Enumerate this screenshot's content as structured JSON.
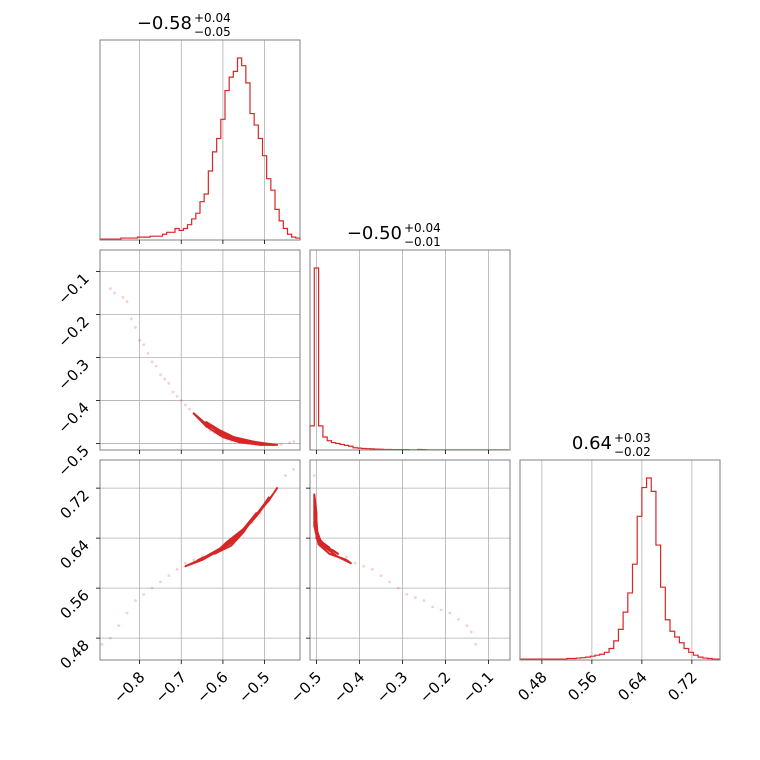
{
  "chart_data": {
    "type": "corner",
    "color": "#d62728",
    "params": [
      {
        "title_main": "−0.58",
        "title_plus": "+0.04",
        "title_minus": "−0.05",
        "range": [
          -0.895,
          -0.415
        ],
        "ticks": [
          -0.8,
          -0.7,
          -0.6,
          -0.5
        ],
        "tick_labels": [
          "−0.8",
          "−0.7",
          "−0.6",
          "−0.5"
        ]
      },
      {
        "title_main": "−0.50",
        "title_plus": "+0.04",
        "title_minus": "−0.01",
        "range": [
          -0.515,
          -0.05
        ],
        "ticks": [
          -0.5,
          -0.4,
          -0.3,
          -0.2,
          -0.1
        ],
        "tick_labels": [
          "−0.5",
          "−0.4",
          "−0.3",
          "−0.2",
          "−0.1"
        ]
      },
      {
        "title_main": "0.64",
        "title_plus": "+0.03",
        "title_minus": "−0.02",
        "range": [
          0.445,
          0.765
        ],
        "ticks": [
          0.48,
          0.56,
          0.64,
          0.72
        ],
        "tick_labels": [
          "0.48",
          "0.56",
          "0.64",
          "0.72"
        ]
      }
    ],
    "histograms": [
      {
        "param": 0,
        "edges": [
          -0.895,
          -0.885,
          -0.875,
          -0.865,
          -0.855,
          -0.845,
          -0.835,
          -0.825,
          -0.815,
          -0.805,
          -0.795,
          -0.785,
          -0.775,
          -0.765,
          -0.755,
          -0.745,
          -0.735,
          -0.725,
          -0.715,
          -0.705,
          -0.695,
          -0.685,
          -0.675,
          -0.665,
          -0.655,
          -0.645,
          -0.635,
          -0.625,
          -0.615,
          -0.605,
          -0.595,
          -0.585,
          -0.575,
          -0.565,
          -0.555,
          -0.545,
          -0.535,
          -0.525,
          -0.515,
          -0.505,
          -0.495,
          -0.485,
          -0.475,
          -0.465,
          -0.455,
          -0.445,
          -0.435,
          -0.425,
          -0.415
        ],
        "counts": [
          0.005,
          0.005,
          0.005,
          0.005,
          0.005,
          0.01,
          0.01,
          0.01,
          0.01,
          0.015,
          0.015,
          0.015,
          0.02,
          0.02,
          0.02,
          0.03,
          0.04,
          0.04,
          0.06,
          0.05,
          0.06,
          0.08,
          0.11,
          0.14,
          0.2,
          0.24,
          0.36,
          0.46,
          0.53,
          0.63,
          0.78,
          0.85,
          0.88,
          0.95,
          0.91,
          0.82,
          0.66,
          0.6,
          0.53,
          0.44,
          0.32,
          0.26,
          0.16,
          0.1,
          0.06,
          0.03,
          0.015,
          0.01
        ]
      },
      {
        "param": 1,
        "edges": [
          -0.515,
          -0.505,
          -0.495,
          -0.485,
          -0.475,
          -0.465,
          -0.455,
          -0.445,
          -0.435,
          -0.425,
          -0.415,
          -0.405,
          -0.395,
          -0.385,
          -0.375,
          -0.365,
          -0.355,
          -0.345,
          -0.335,
          -0.325,
          -0.315,
          -0.305,
          -0.295,
          -0.285,
          -0.275,
          -0.265,
          -0.255,
          -0.245,
          -0.235,
          -0.225,
          -0.215,
          -0.205,
          -0.195,
          -0.185,
          -0.175,
          -0.165,
          -0.155,
          -0.145,
          -0.135,
          -0.125,
          -0.115,
          -0.105,
          -0.095,
          -0.085,
          -0.075,
          -0.065,
          -0.055
        ],
        "counts": [
          0.13,
          0.98,
          0.13,
          0.07,
          0.05,
          0.04,
          0.035,
          0.03,
          0.025,
          0.02,
          0.012,
          0.01,
          0.008,
          0.007,
          0.006,
          0.005,
          0.004,
          0.003,
          0.003,
          0.002,
          0.002,
          0.002,
          0.002,
          0.001,
          0.001,
          0.003,
          0.002,
          0.001,
          0.001,
          0.001,
          0.001,
          0.001,
          0.001,
          0.001,
          0.001,
          0.001,
          0.001,
          0.001,
          0.001,
          0.001,
          0.001,
          0.001,
          0.001,
          0.001,
          0.001,
          0.001
        ]
      },
      {
        "param": 2,
        "edges": [
          0.445,
          0.4525,
          0.46,
          0.4675,
          0.475,
          0.4825,
          0.49,
          0.4975,
          0.505,
          0.5125,
          0.52,
          0.5275,
          0.535,
          0.5425,
          0.55,
          0.5575,
          0.565,
          0.5725,
          0.58,
          0.5875,
          0.595,
          0.6025,
          0.61,
          0.6175,
          0.625,
          0.6325,
          0.64,
          0.6475,
          0.655,
          0.6625,
          0.67,
          0.6775,
          0.685,
          0.6925,
          0.7,
          0.7075,
          0.715,
          0.7225,
          0.73,
          0.7375,
          0.745,
          0.7525,
          0.76,
          0.765
        ],
        "counts": [
          0.005,
          0.005,
          0.005,
          0.005,
          0.005,
          0.005,
          0.005,
          0.005,
          0.005,
          0.005,
          0.008,
          0.008,
          0.01,
          0.012,
          0.015,
          0.02,
          0.025,
          0.03,
          0.04,
          0.06,
          0.1,
          0.16,
          0.25,
          0.35,
          0.5,
          0.75,
          0.9,
          0.95,
          0.88,
          0.6,
          0.38,
          0.21,
          0.15,
          0.12,
          0.09,
          0.06,
          0.04,
          0.025,
          0.015,
          0.01,
          0.008,
          0.005,
          0.005
        ]
      }
    ],
    "scatter_samples": {
      "xy_10": [
        [
          -0.87,
          -0.14
        ],
        [
          -0.86,
          -0.15
        ],
        [
          -0.84,
          -0.16
        ],
        [
          -0.83,
          -0.17
        ],
        [
          -0.82,
          -0.21
        ],
        [
          -0.81,
          -0.23
        ],
        [
          -0.8,
          -0.26
        ],
        [
          -0.79,
          -0.27
        ],
        [
          -0.78,
          -0.29
        ],
        [
          -0.77,
          -0.31
        ],
        [
          -0.76,
          -0.32
        ],
        [
          -0.75,
          -0.34
        ],
        [
          -0.74,
          -0.35
        ],
        [
          -0.73,
          -0.36
        ],
        [
          -0.72,
          -0.38
        ],
        [
          -0.71,
          -0.39
        ],
        [
          -0.7,
          -0.4
        ],
        [
          -0.69,
          -0.41
        ],
        [
          -0.68,
          -0.42
        ],
        [
          -0.67,
          -0.43
        ],
        [
          -0.66,
          -0.44
        ],
        [
          -0.65,
          -0.45
        ],
        [
          -0.64,
          -0.46
        ],
        [
          -0.63,
          -0.47
        ],
        [
          -0.62,
          -0.475
        ],
        [
          -0.61,
          -0.48
        ],
        [
          -0.6,
          -0.485
        ],
        [
          -0.59,
          -0.49
        ],
        [
          -0.58,
          -0.493
        ],
        [
          -0.56,
          -0.497
        ],
        [
          -0.54,
          -0.5
        ],
        [
          -0.52,
          -0.502
        ],
        [
          -0.5,
          -0.503
        ],
        [
          -0.48,
          -0.503
        ],
        [
          -0.46,
          -0.502
        ],
        [
          -0.44,
          -0.498
        ],
        [
          -0.43,
          -0.495
        ]
      ],
      "xy_20": [
        [
          -0.89,
          0.47
        ],
        [
          -0.87,
          0.48
        ],
        [
          -0.85,
          0.5
        ],
        [
          -0.83,
          0.52
        ],
        [
          -0.81,
          0.54
        ],
        [
          -0.79,
          0.55
        ],
        [
          -0.77,
          0.56
        ],
        [
          -0.75,
          0.57
        ],
        [
          -0.73,
          0.58
        ],
        [
          -0.71,
          0.59
        ],
        [
          -0.69,
          0.6
        ],
        [
          -0.67,
          0.605
        ],
        [
          -0.65,
          0.61
        ],
        [
          -0.63,
          0.615
        ],
        [
          -0.61,
          0.62
        ],
        [
          -0.59,
          0.63
        ],
        [
          -0.57,
          0.64
        ],
        [
          -0.55,
          0.65
        ],
        [
          -0.53,
          0.665
        ],
        [
          -0.51,
          0.68
        ],
        [
          -0.49,
          0.7
        ],
        [
          -0.47,
          0.72
        ],
        [
          -0.45,
          0.74
        ],
        [
          -0.43,
          0.75
        ]
      ],
      "xy_21": [
        [
          -0.505,
          0.74
        ],
        [
          -0.505,
          0.7
        ],
        [
          -0.505,
          0.66
        ],
        [
          -0.5,
          0.64
        ],
        [
          -0.49,
          0.63
        ],
        [
          -0.47,
          0.62
        ],
        [
          -0.45,
          0.615
        ],
        [
          -0.43,
          0.61
        ],
        [
          -0.41,
          0.6
        ],
        [
          -0.39,
          0.595
        ],
        [
          -0.37,
          0.59
        ],
        [
          -0.35,
          0.58
        ],
        [
          -0.33,
          0.57
        ],
        [
          -0.31,
          0.56
        ],
        [
          -0.29,
          0.55
        ],
        [
          -0.27,
          0.545
        ],
        [
          -0.25,
          0.54
        ],
        [
          -0.23,
          0.53
        ],
        [
          -0.21,
          0.525
        ],
        [
          -0.19,
          0.52
        ],
        [
          -0.17,
          0.51
        ],
        [
          -0.15,
          0.5
        ],
        [
          -0.14,
          0.49
        ],
        [
          -0.13,
          0.47
        ]
      ]
    },
    "contours": {
      "xy_10": [
        [
          [
            -0.67,
            -0.43
          ],
          [
            -0.64,
            -0.46
          ],
          [
            -0.6,
            -0.485
          ],
          [
            -0.56,
            -0.497
          ],
          [
            -0.51,
            -0.503
          ],
          [
            -0.47,
            -0.503
          ],
          [
            -0.51,
            -0.5
          ],
          [
            -0.56,
            -0.492
          ],
          [
            -0.6,
            -0.477
          ],
          [
            -0.64,
            -0.455
          ],
          [
            -0.67,
            -0.43
          ]
        ],
        [
          [
            -0.64,
            -0.45
          ],
          [
            -0.61,
            -0.475
          ],
          [
            -0.57,
            -0.494
          ],
          [
            -0.52,
            -0.501
          ],
          [
            -0.48,
            -0.502
          ],
          [
            -0.52,
            -0.497
          ],
          [
            -0.57,
            -0.487
          ],
          [
            -0.61,
            -0.468
          ],
          [
            -0.64,
            -0.45
          ]
        ],
        [
          [
            -0.6,
            -0.477
          ],
          [
            -0.57,
            -0.492
          ],
          [
            -0.53,
            -0.499
          ],
          [
            -0.5,
            -0.5
          ],
          [
            -0.53,
            -0.495
          ],
          [
            -0.57,
            -0.486
          ],
          [
            -0.6,
            -0.477
          ]
        ]
      ],
      "xy_20": [
        [
          [
            -0.69,
            0.595
          ],
          [
            -0.64,
            0.61
          ],
          [
            -0.6,
            0.625
          ],
          [
            -0.56,
            0.645
          ],
          [
            -0.52,
            0.675
          ],
          [
            -0.48,
            0.71
          ],
          [
            -0.47,
            0.72
          ],
          [
            -0.49,
            0.7
          ],
          [
            -0.53,
            0.67
          ],
          [
            -0.57,
            0.64
          ],
          [
            -0.61,
            0.62
          ],
          [
            -0.65,
            0.605
          ],
          [
            -0.69,
            0.595
          ]
        ],
        [
          [
            -0.66,
            0.605
          ],
          [
            -0.62,
            0.617
          ],
          [
            -0.58,
            0.632
          ],
          [
            -0.54,
            0.66
          ],
          [
            -0.5,
            0.695
          ],
          [
            -0.49,
            0.705
          ],
          [
            -0.52,
            0.675
          ],
          [
            -0.56,
            0.646
          ],
          [
            -0.6,
            0.626
          ],
          [
            -0.64,
            0.611
          ],
          [
            -0.66,
            0.605
          ]
        ],
        [
          [
            -0.62,
            0.615
          ],
          [
            -0.58,
            0.628
          ],
          [
            -0.55,
            0.65
          ],
          [
            -0.52,
            0.68
          ],
          [
            -0.55,
            0.655
          ],
          [
            -0.59,
            0.634
          ],
          [
            -0.62,
            0.615
          ]
        ]
      ],
      "xy_21": [
        [
          [
            -0.505,
            0.71
          ],
          [
            -0.505,
            0.66
          ],
          [
            -0.495,
            0.63
          ],
          [
            -0.47,
            0.615
          ],
          [
            -0.43,
            0.605
          ],
          [
            -0.42,
            0.6
          ],
          [
            -0.45,
            0.61
          ],
          [
            -0.48,
            0.625
          ],
          [
            -0.5,
            0.64
          ],
          [
            -0.5,
            0.68
          ],
          [
            -0.505,
            0.71
          ]
        ],
        [
          [
            -0.503,
            0.69
          ],
          [
            -0.502,
            0.65
          ],
          [
            -0.49,
            0.63
          ],
          [
            -0.46,
            0.62
          ],
          [
            -0.45,
            0.615
          ],
          [
            -0.48,
            0.627
          ],
          [
            -0.497,
            0.64
          ],
          [
            -0.5,
            0.67
          ],
          [
            -0.503,
            0.69
          ]
        ],
        [
          [
            -0.502,
            0.665
          ],
          [
            -0.5,
            0.645
          ],
          [
            -0.485,
            0.632
          ],
          [
            -0.47,
            0.625
          ],
          [
            -0.49,
            0.635
          ],
          [
            -0.498,
            0.65
          ],
          [
            -0.502,
            0.665
          ]
        ]
      ]
    },
    "grid": true
  }
}
